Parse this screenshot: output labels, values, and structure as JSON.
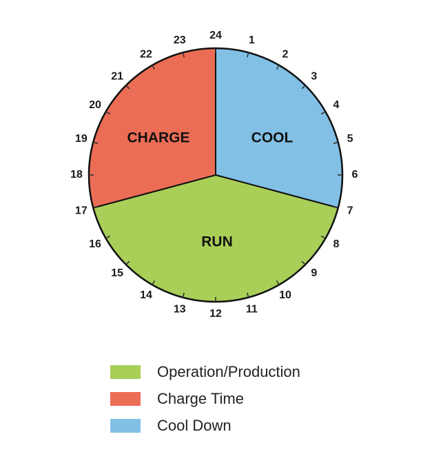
{
  "chart_data": {
    "type": "pie",
    "total_hours": 24,
    "slices": [
      {
        "label": "COOL",
        "legend": "Cool Down",
        "start_hour": 0,
        "end_hour": 7,
        "color": "#82c0e6"
      },
      {
        "label": "RUN",
        "legend": "Operation/Production",
        "start_hour": 7,
        "end_hour": 17,
        "color": "#a9cf58"
      },
      {
        "label": "CHARGE",
        "legend": "Charge Time",
        "start_hour": 17,
        "end_hour": 24,
        "color": "#ec6d55"
      }
    ],
    "hour_labels": [
      "24",
      "1",
      "2",
      "3",
      "4",
      "5",
      "6",
      "7",
      "8",
      "9",
      "10",
      "11",
      "12",
      "13",
      "14",
      "15",
      "16",
      "17",
      "18",
      "19",
      "20",
      "21",
      "22",
      "23"
    ],
    "legend": {
      "placement": "bottom",
      "items": [
        {
          "label": "Operation/Production",
          "color": "#a9cf58"
        },
        {
          "label": "Charge Time",
          "color": "#ec6d55"
        },
        {
          "label": "Cool Down",
          "color": "#82c0e6"
        }
      ]
    }
  }
}
